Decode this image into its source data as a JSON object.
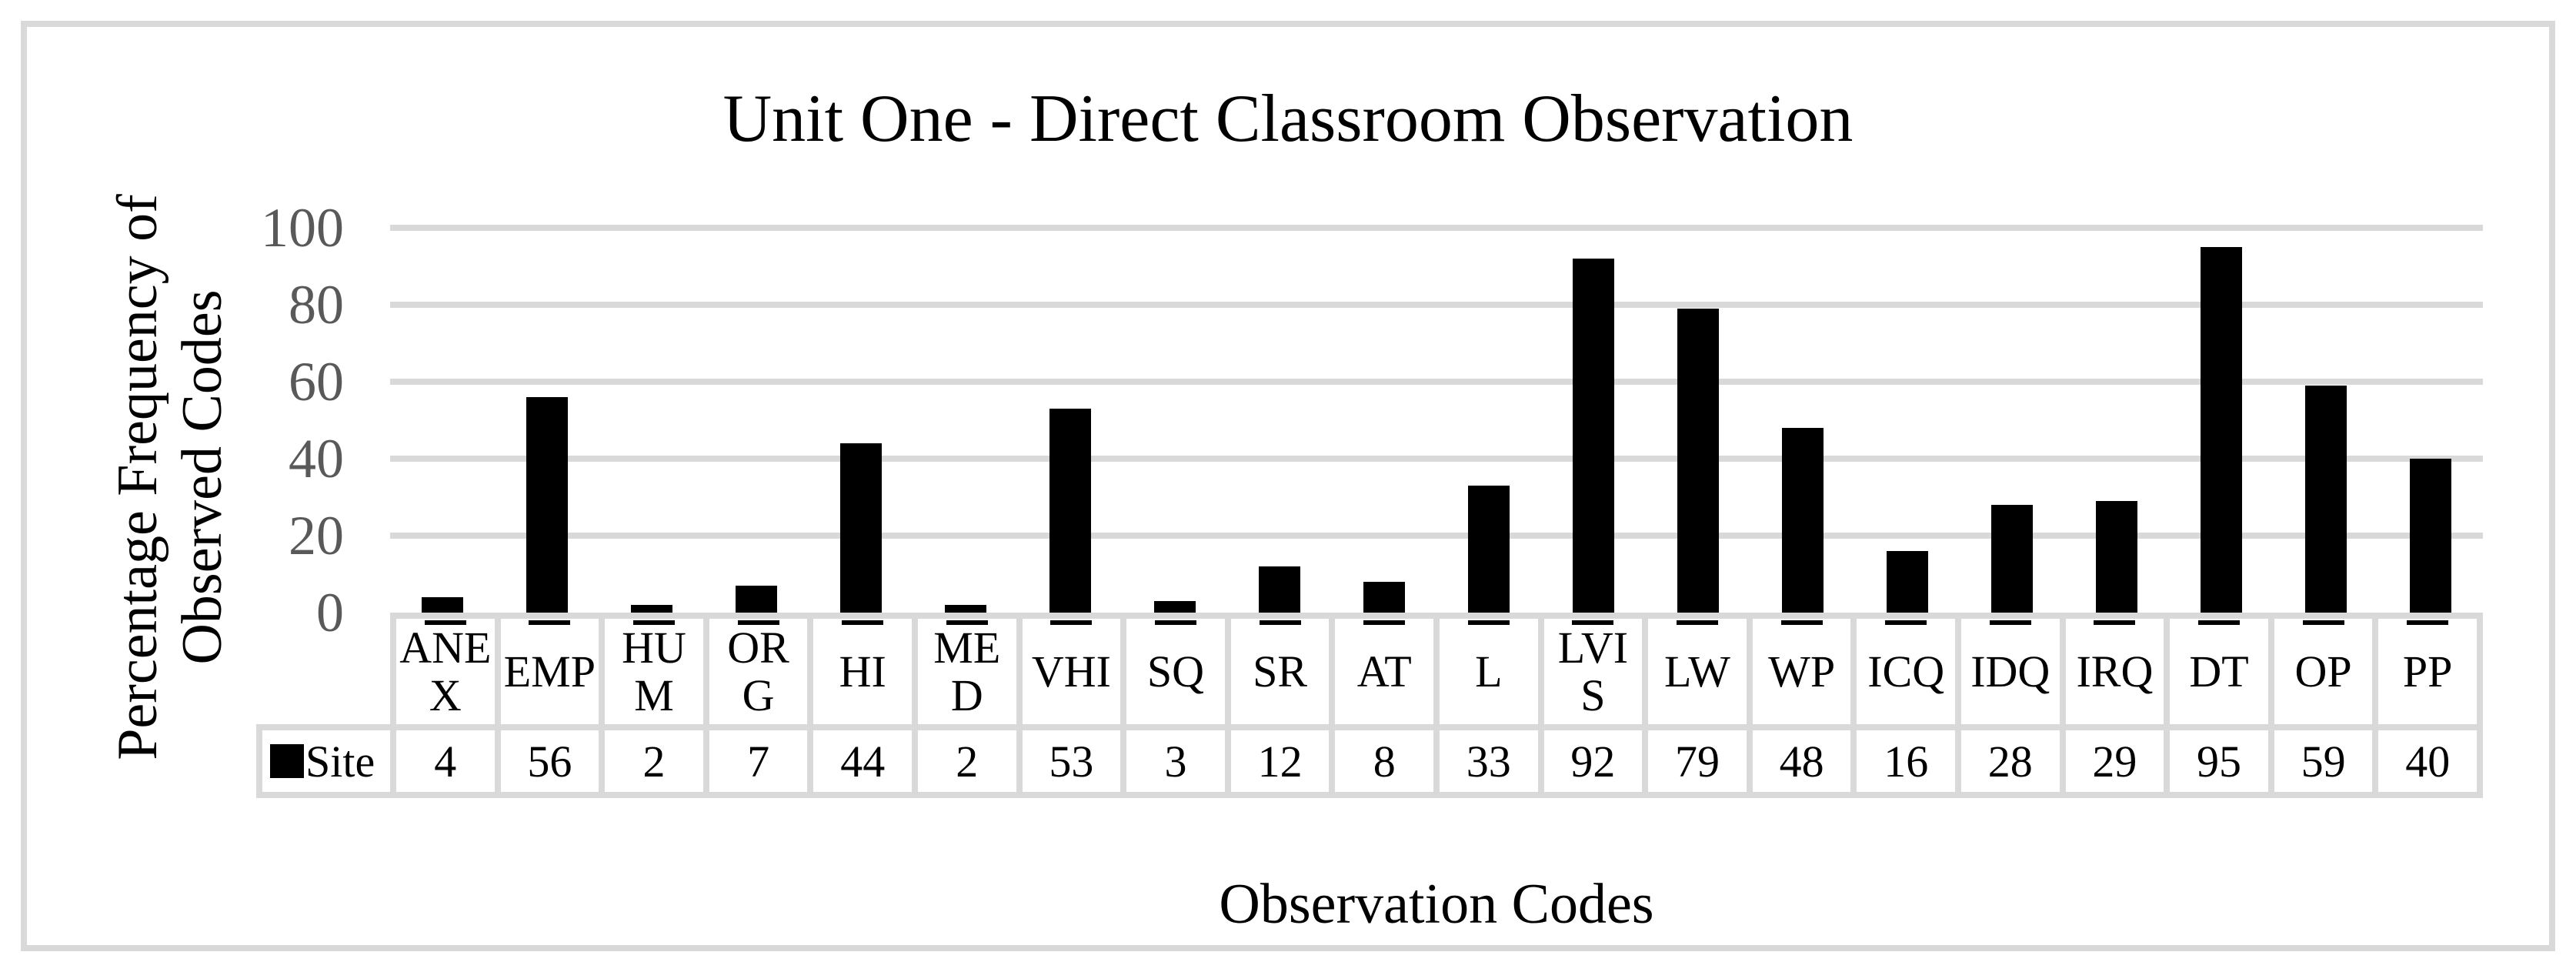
{
  "chart": {
    "title": "Unit One - Direct Classroom Observation",
    "y_axis_title": "Percentage Frequency of\nObserved Codes",
    "x_axis_title": "Observation Codes",
    "legend": {
      "series_label": "Site",
      "marker": "black-square"
    }
  },
  "chart_data": {
    "type": "bar",
    "title": "Unit One - Direct Classroom Observation",
    "xlabel": "Observation Codes",
    "ylabel": "Percentage Frequency of Observed Codes",
    "categories": [
      "ANEX",
      "EMP",
      "HUM",
      "ORG",
      "HI",
      "MED",
      "VHI",
      "SQ",
      "SR",
      "AT",
      "L",
      "LVIS",
      "LW",
      "WP",
      "ICQ",
      "IDQ",
      "IRQ",
      "DT",
      "OP",
      "PP"
    ],
    "category_display": [
      "ANE\nX",
      "EMP",
      "HU\nM",
      "OR\nG",
      "HI",
      "ME\nD",
      "VHI",
      "SQ",
      "SR",
      "AT",
      "L",
      "LVI\nS",
      "LW",
      "WP",
      "ICQ",
      "IDQ",
      "IRQ",
      "DT",
      "OP",
      "PP"
    ],
    "series": [
      {
        "name": "Site",
        "values": [
          4,
          56,
          2,
          7,
          44,
          2,
          53,
          3,
          12,
          8,
          33,
          92,
          79,
          48,
          16,
          28,
          29,
          95,
          59,
          40
        ]
      }
    ],
    "ylim": [
      0,
      100
    ],
    "yticks": [
      0,
      20,
      40,
      60,
      80,
      100
    ],
    "grid": true,
    "grid_axis": "y",
    "legend_position": "table-left",
    "data_table_shown": true,
    "colors": {
      "bar": "#000000",
      "gridline": "#d9d9d9",
      "table_border": "#d9d9d9",
      "tick_label": "#595959",
      "text": "#000000",
      "background": "#ffffff"
    }
  }
}
